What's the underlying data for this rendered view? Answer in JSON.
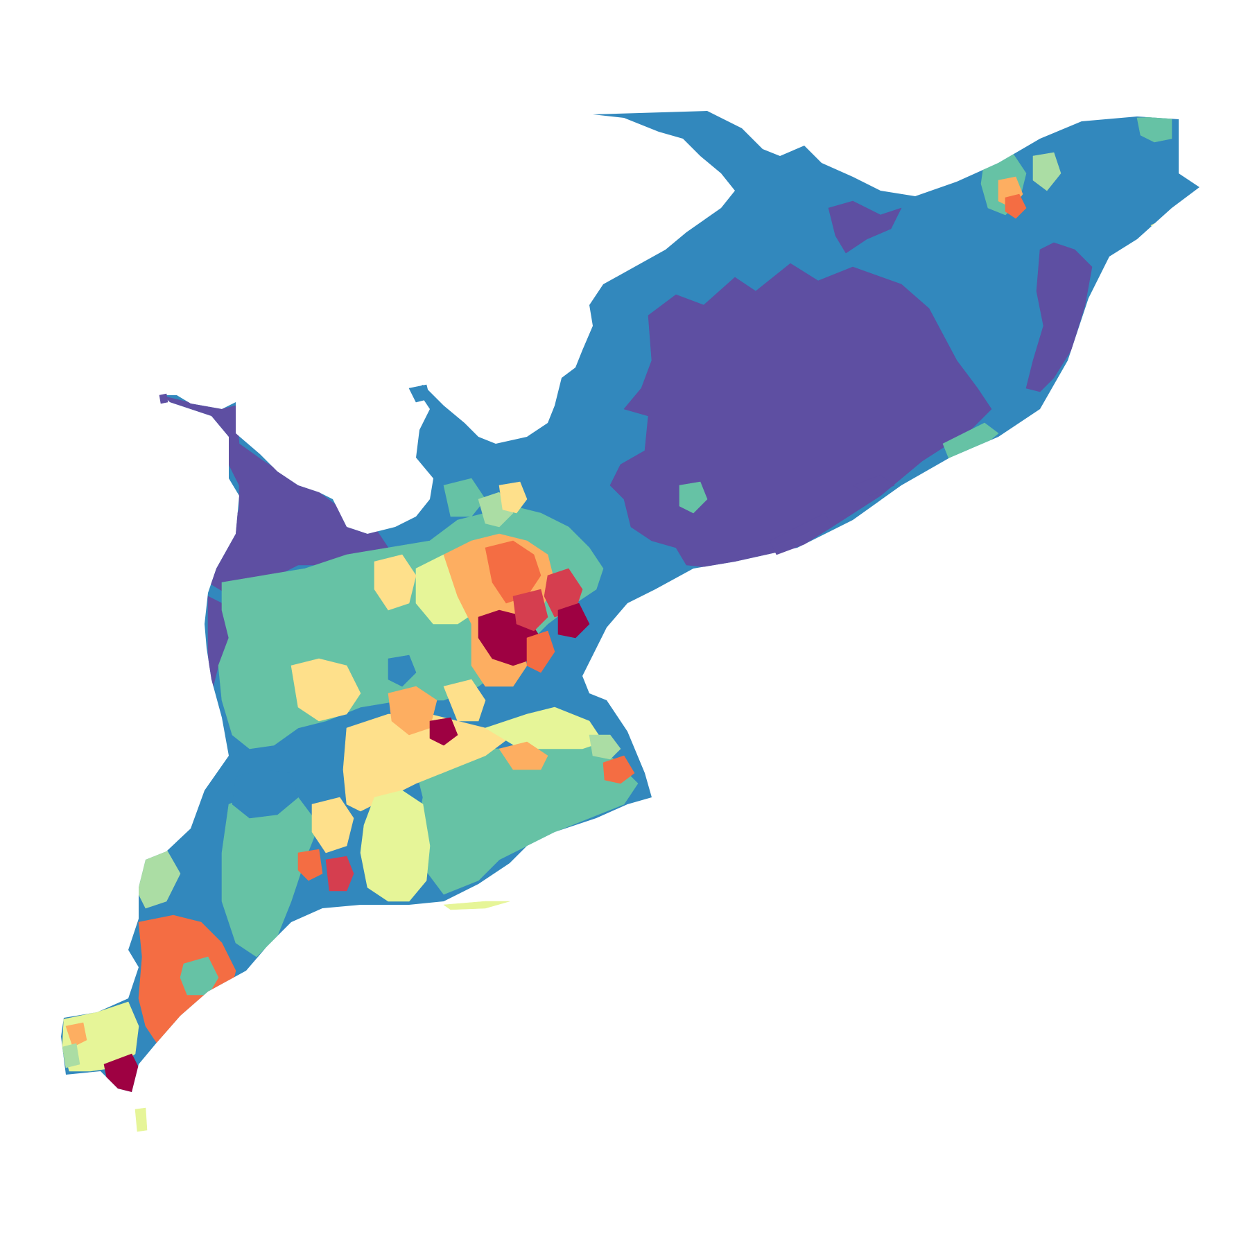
{
  "map": {
    "palette": {
      "c1": "#9e0142",
      "c2": "#d53e4f",
      "c3": "#f46d43",
      "c4": "#fdae61",
      "c5": "#fee08b",
      "c6": "#e6f598",
      "c7": "#abdda4",
      "c8": "#66c2a5",
      "c9": "#3288bd",
      "c10": "#5e4fa2"
    }
  }
}
